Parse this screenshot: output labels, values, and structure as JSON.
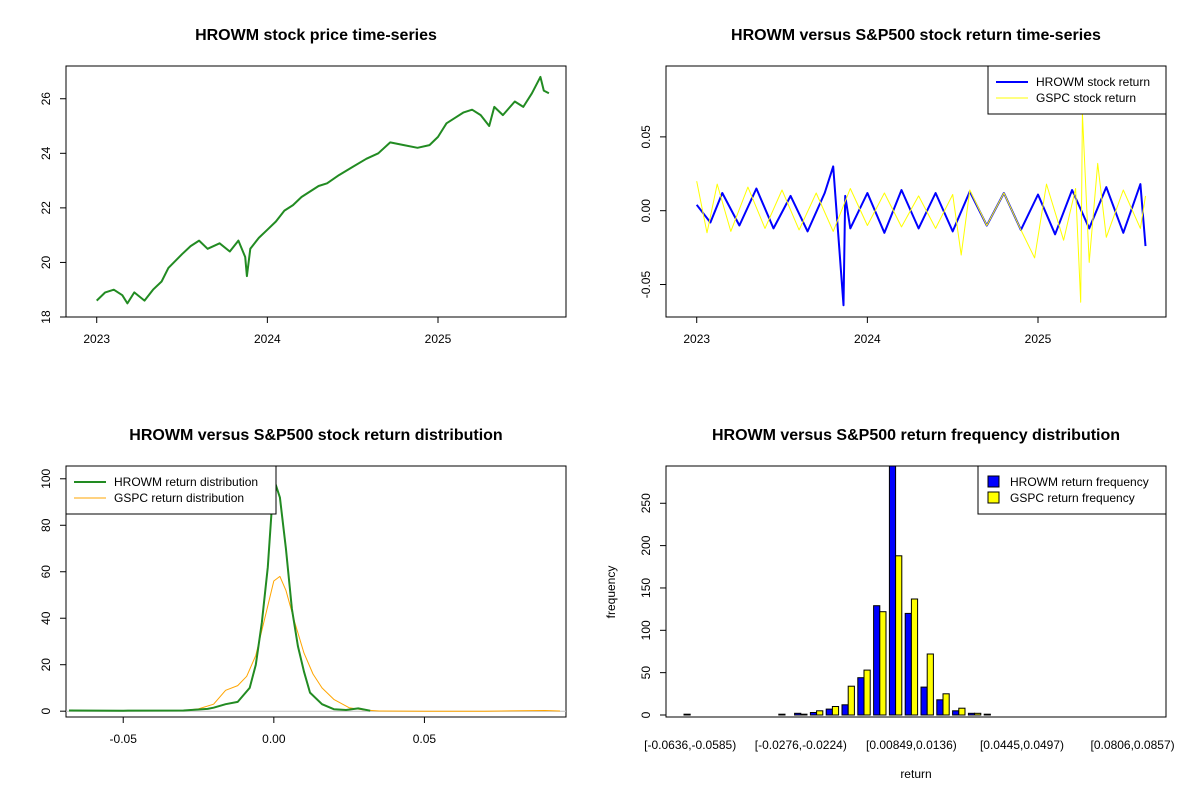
{
  "chart_data": [
    {
      "type": "line",
      "title": "HROWM stock price time-series",
      "xlabel": "",
      "ylabel": "",
      "x_ticks": [
        "2023",
        "2024",
        "2025"
      ],
      "x_tick_values": [
        2023.0,
        2024.0,
        2025.0
      ],
      "xlim": [
        2022.82,
        2025.75
      ],
      "ylim": [
        18.0,
        27.2
      ],
      "y_ticks": [
        18,
        20,
        22,
        24,
        26
      ],
      "series": [
        {
          "color": "#228B22",
          "x": [
            2023.0,
            2023.05,
            2023.1,
            2023.15,
            2023.18,
            2023.22,
            2023.28,
            2023.33,
            2023.38,
            2023.42,
            2023.5,
            2023.55,
            2023.6,
            2023.65,
            2023.72,
            2023.78,
            2023.83,
            2023.87,
            2023.88,
            2023.9,
            2023.95,
            2024.0,
            2024.05,
            2024.1,
            2024.15,
            2024.2,
            2024.3,
            2024.35,
            2024.42,
            2024.5,
            2024.58,
            2024.65,
            2024.72,
            2024.8,
            2024.88,
            2024.95,
            2025.0,
            2025.05,
            2025.1,
            2025.15,
            2025.2,
            2025.25,
            2025.3,
            2025.33,
            2025.38,
            2025.45,
            2025.5,
            2025.55,
            2025.6,
            2025.62,
            2025.65
          ],
          "y": [
            18.6,
            18.9,
            19.0,
            18.8,
            18.5,
            18.9,
            18.6,
            19.0,
            19.3,
            19.8,
            20.3,
            20.6,
            20.8,
            20.5,
            20.7,
            20.4,
            20.8,
            20.2,
            19.5,
            20.5,
            20.9,
            21.2,
            21.5,
            21.9,
            22.1,
            22.4,
            22.8,
            22.9,
            23.2,
            23.5,
            23.8,
            24.0,
            24.4,
            24.3,
            24.2,
            24.3,
            24.6,
            25.1,
            25.3,
            25.5,
            25.6,
            25.4,
            25.0,
            25.7,
            25.4,
            25.9,
            25.7,
            26.2,
            26.8,
            26.3,
            26.2
          ]
        }
      ]
    },
    {
      "type": "line",
      "title": "HROWM versus S&P500 stock return time-series",
      "xlabel": "",
      "ylabel": "",
      "x_ticks": [
        "2023",
        "2024",
        "2025"
      ],
      "x_tick_values": [
        2023.0,
        2024.0,
        2025.0
      ],
      "xlim": [
        2022.82,
        2025.75
      ],
      "ylim": [
        -0.072,
        0.098
      ],
      "y_ticks": [
        -0.05,
        0.0,
        0.05
      ],
      "y_tick_labels": [
        "-0.05",
        "0.00",
        "0.05"
      ],
      "legend": "top-right",
      "series": [
        {
          "name": "HROWM stock return",
          "color": "#0000FF",
          "x": [
            2023.0,
            2023.08,
            2023.15,
            2023.25,
            2023.35,
            2023.45,
            2023.55,
            2023.65,
            2023.75,
            2023.8,
            2023.86,
            2023.87,
            2023.9,
            2024.0,
            2024.1,
            2024.2,
            2024.3,
            2024.4,
            2024.5,
            2024.6,
            2024.7,
            2024.8,
            2024.9,
            2025.0,
            2025.1,
            2025.2,
            2025.3,
            2025.4,
            2025.5,
            2025.6,
            2025.63
          ],
          "y": [
            0.004,
            -0.008,
            0.012,
            -0.01,
            0.015,
            -0.012,
            0.01,
            -0.014,
            0.012,
            0.03,
            -0.064,
            0.01,
            -0.012,
            0.012,
            -0.015,
            0.014,
            -0.012,
            0.012,
            -0.014,
            0.013,
            -0.01,
            0.012,
            -0.013,
            0.011,
            -0.016,
            0.014,
            -0.012,
            0.016,
            -0.015,
            0.018,
            -0.024
          ]
        },
        {
          "name": "GSPC stock return",
          "color": "#FFFF00",
          "x": [
            2023.0,
            2023.06,
            2023.12,
            2023.2,
            2023.3,
            2023.4,
            2023.5,
            2023.6,
            2023.7,
            2023.8,
            2023.9,
            2024.0,
            2024.1,
            2024.2,
            2024.3,
            2024.4,
            2024.5,
            2024.55,
            2024.6,
            2024.7,
            2024.8,
            2024.9,
            2024.98,
            2025.05,
            2025.15,
            2025.22,
            2025.25,
            2025.26,
            2025.3,
            2025.35,
            2025.4,
            2025.5,
            2025.6,
            2025.63
          ],
          "y": [
            0.02,
            -0.015,
            0.018,
            -0.014,
            0.016,
            -0.012,
            0.014,
            -0.013,
            0.012,
            -0.014,
            0.015,
            -0.01,
            0.012,
            -0.011,
            0.01,
            -0.012,
            0.011,
            -0.03,
            0.014,
            -0.01,
            0.012,
            -0.013,
            -0.032,
            0.018,
            -0.02,
            0.015,
            -0.062,
            0.066,
            -0.035,
            0.032,
            -0.018,
            0.014,
            -0.012,
            0.01
          ]
        }
      ]
    },
    {
      "type": "line",
      "title": "HROWM versus S&P500 stock return distribution",
      "xlabel": "",
      "ylabel": "",
      "x_ticks": [
        -0.05,
        0.0,
        0.05
      ],
      "x_tick_labels": [
        "-0.05",
        "0.00",
        "0.05"
      ],
      "xlim": [
        -0.069,
        0.097
      ],
      "ylim": [
        -2.5,
        105.5
      ],
      "y_ticks": [
        0,
        20,
        40,
        60,
        80,
        100
      ],
      "legend": "top-left",
      "series": [
        {
          "name": "HROWM return distribution",
          "color": "#228B22",
          "x": [
            -0.068,
            -0.05,
            -0.03,
            -0.022,
            -0.02,
            -0.016,
            -0.012,
            -0.008,
            -0.006,
            -0.004,
            -0.002,
            0.0,
            0.002,
            0.004,
            0.006,
            0.008,
            0.01,
            0.012,
            0.016,
            0.02,
            0.024,
            0.028,
            0.032
          ],
          "y": [
            0.3,
            0.2,
            0.3,
            1.0,
            1.5,
            3.0,
            4.0,
            10.0,
            20.0,
            38.0,
            62.0,
            100.0,
            92.0,
            70.0,
            44.0,
            28.0,
            17.0,
            8.0,
            3.0,
            0.8,
            0.5,
            1.2,
            0.2
          ]
        },
        {
          "name": "GSPC return distribution",
          "color": "#FFA500",
          "x": [
            -0.068,
            -0.05,
            -0.03,
            -0.025,
            -0.02,
            -0.016,
            -0.012,
            -0.009,
            -0.006,
            -0.003,
            0.0,
            0.002,
            0.004,
            0.007,
            0.01,
            0.013,
            0.016,
            0.02,
            0.025,
            0.03,
            0.035,
            0.05,
            0.07,
            0.09,
            0.095
          ],
          "y": [
            0.1,
            0.3,
            0.3,
            1.0,
            3.0,
            9.0,
            11.0,
            15.0,
            24.0,
            40.0,
            56.0,
            58.0,
            52.0,
            38.0,
            25.0,
            16.0,
            10.0,
            5.0,
            1.5,
            0.5,
            0.1,
            0.0,
            0.0,
            0.3,
            0.1
          ]
        }
      ]
    },
    {
      "type": "bar",
      "title": "HROWM versus S&P500 return frequency distribution",
      "xlabel": "return",
      "ylabel": "frequency",
      "ylim": [
        0,
        294
      ],
      "y_ticks": [
        0,
        50,
        100,
        150,
        200,
        250
      ],
      "x_tick_labels": [
        "[-0.0636,-0.0585)",
        "[-0.0276,-0.0224)",
        "[0.00849,0.0136)",
        "[0.0445,0.0497)",
        "[0.0806,0.0857)"
      ],
      "x_tick_bins": [
        0,
        7,
        14,
        21,
        28
      ],
      "legend": "top-right",
      "bins": 30,
      "series": [
        {
          "name": "HROWM return frequency",
          "color": "#0000FF",
          "values": [
            1,
            0,
            0,
            0,
            0,
            0,
            1,
            2,
            3,
            7,
            12,
            44,
            129,
            294,
            120,
            33,
            18,
            5,
            2,
            1,
            0,
            0,
            0,
            0,
            0,
            0,
            0,
            0,
            0,
            0
          ]
        },
        {
          "name": "GSPC return frequency",
          "color": "#FFFF00",
          "values": [
            0,
            0,
            0,
            0,
            0,
            0,
            0,
            1,
            5,
            10,
            34,
            53,
            122,
            188,
            137,
            72,
            25,
            8,
            2,
            0,
            0,
            0,
            0,
            0,
            0,
            0,
            0,
            0,
            0,
            0
          ]
        }
      ]
    }
  ]
}
